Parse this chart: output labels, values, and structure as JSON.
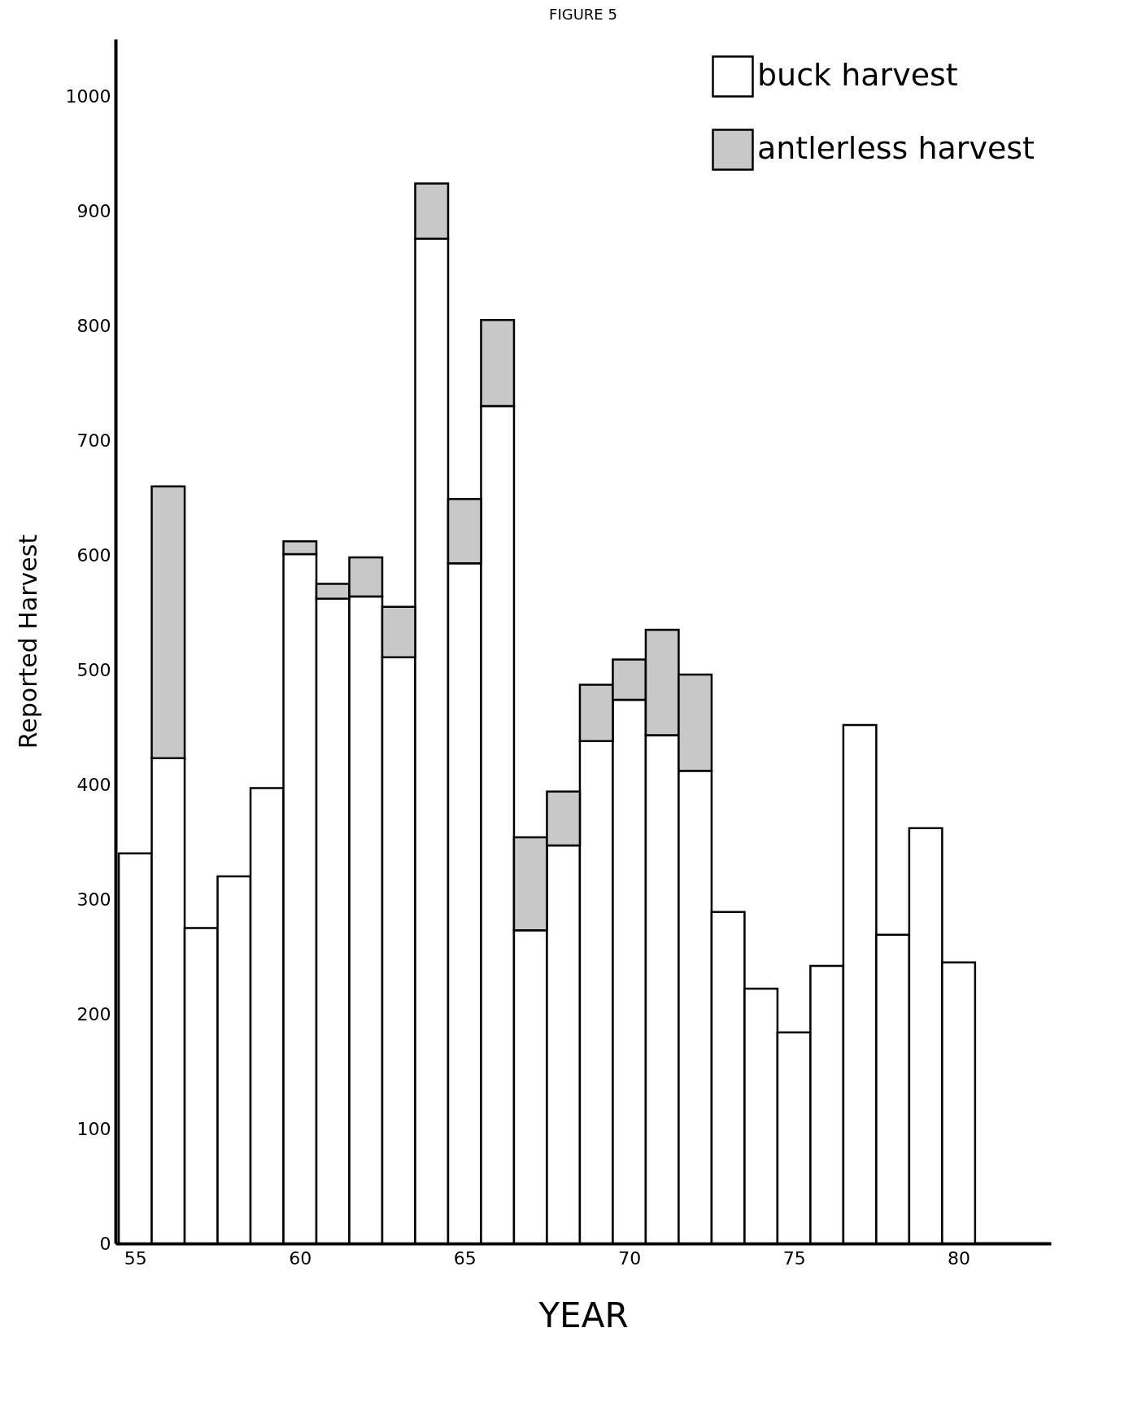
{
  "chart_data": {
    "type": "bar",
    "title": "FIGURE 5",
    "xlabel": "YEAR",
    "ylabel": "Reported Harvest",
    "stacked": true,
    "x": [
      55,
      56,
      57,
      58,
      59,
      60,
      61,
      62,
      63,
      64,
      65,
      66,
      67,
      68,
      69,
      70,
      71,
      72,
      73,
      74,
      75,
      76,
      77,
      78,
      79,
      80
    ],
    "series": [
      {
        "name": "buck harvest",
        "color": "#ffffff",
        "values": [
          340,
          423,
          275,
          320,
          397,
          601,
          562,
          564,
          511,
          876,
          593,
          730,
          273,
          347,
          438,
          474,
          443,
          412,
          289,
          222,
          184,
          242,
          452,
          269,
          362,
          245
        ]
      },
      {
        "name": "antlerless harvest",
        "color": "#c8c8c8",
        "values": [
          null,
          237,
          null,
          null,
          null,
          11,
          13,
          34,
          44,
          48,
          56,
          75,
          81,
          47,
          49,
          35,
          92,
          84,
          null,
          null,
          null,
          null,
          null,
          null,
          null,
          null
        ]
      }
    ],
    "xlim": [
      54.4,
      82.8
    ],
    "xticks": [
      55,
      60,
      65,
      70,
      75,
      80
    ],
    "ylim": [
      0,
      1050
    ],
    "yticks": [
      0,
      100,
      200,
      300,
      400,
      500,
      600,
      700,
      800,
      900,
      1000
    ],
    "grid": false,
    "legend": "top right"
  }
}
